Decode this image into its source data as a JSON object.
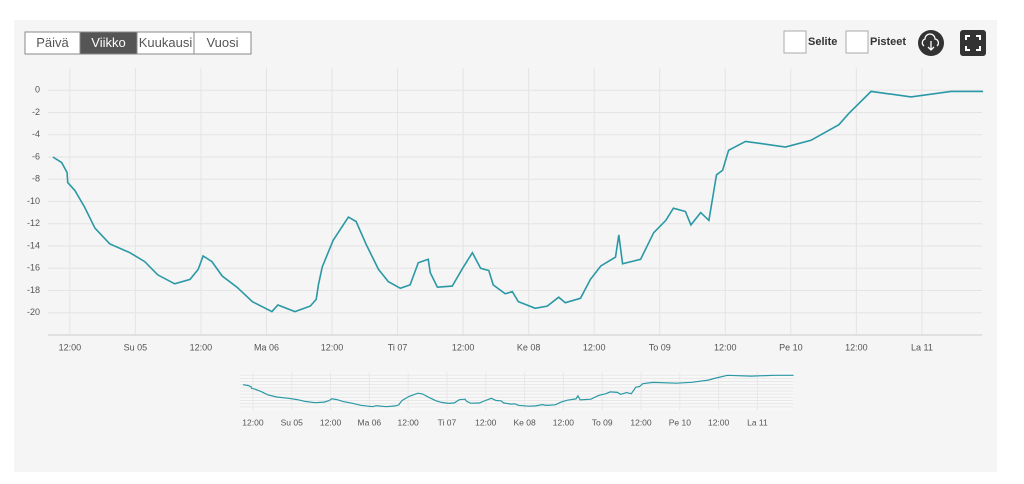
{
  "controls": {
    "ranges": [
      "Päivä",
      "Viikko",
      "Kuukausi",
      "Vuosi"
    ],
    "selected": 1,
    "checkboxes": [
      "Selite",
      "Pisteet"
    ]
  },
  "chart_data": {
    "type": "line",
    "color": "#2a98a5",
    "x": [
      -3.1,
      -1.5,
      -0.5,
      -0.4,
      0.9,
      2.7,
      4.6,
      7.3,
      11,
      13.7,
      16.1,
      19.2,
      22,
      23.5,
      24.4,
      26,
      27.9,
      30.6,
      33.4,
      37,
      38.1,
      41.2,
      44,
      45.1,
      45.5,
      46.2,
      48.2,
      51,
      52.4,
      54.3,
      56.5,
      58.3,
      60.5,
      62.3,
      63.8,
      65.6,
      66,
      67.3,
      70,
      71.9,
      73.7,
      75.2,
      76.7,
      77.5,
      79.7,
      81,
      82.1,
      85.2,
      87.4,
      89.5,
      90.7,
      93.5,
      95.3,
      97.2,
      99.9,
      100.5,
      101.2,
      104.5,
      106.9,
      109.1,
      110.5,
      112.7,
      113.7,
      115.5,
      117,
      118.4,
      119.5,
      120.6,
      123.7,
      131,
      135.7,
      140.8,
      142.6,
      146.7,
      154,
      161.3,
      167.2
    ],
    "values": [
      -6.0,
      -6.5,
      -7.4,
      -8.3,
      -9.0,
      -10.5,
      -12.4,
      -13.8,
      -14.6,
      -15.4,
      -16.6,
      -17.4,
      -17.0,
      -16.1,
      -14.9,
      -15.4,
      -16.7,
      -17.7,
      -19.0,
      -19.9,
      -19.3,
      -19.9,
      -19.4,
      -18.8,
      -17.5,
      -15.9,
      -13.5,
      -11.4,
      -11.8,
      -13.9,
      -16.1,
      -17.2,
      -17.8,
      -17.5,
      -15.5,
      -15.2,
      -16.4,
      -17.7,
      -17.6,
      -16.0,
      -14.6,
      -16.0,
      -16.2,
      -17.5,
      -18.3,
      -18.1,
      -19.0,
      -19.6,
      -19.4,
      -18.6,
      -19.1,
      -18.7,
      -17.0,
      -15.8,
      -15.0,
      -13.0,
      -15.6,
      -15.2,
      -12.8,
      -11.7,
      -10.6,
      -10.9,
      -12.1,
      -11.0,
      -11.7,
      -7.6,
      -7.2,
      -5.4,
      -4.6,
      -5.1,
      -4.5,
      -3.1,
      -2.1,
      -0.1,
      -0.6,
      -0.1,
      -0.1
    ],
    "xlim": [
      -4,
      167
    ],
    "xticks": [
      {
        "value": 0,
        "label": "12:00"
      },
      {
        "value": 12,
        "label": "Su 05"
      },
      {
        "value": 24,
        "label": "12:00"
      },
      {
        "value": 36,
        "label": "Ma 06"
      },
      {
        "value": 48,
        "label": "12:00"
      },
      {
        "value": 60,
        "label": "Ti 07"
      },
      {
        "value": 72,
        "label": "12:00"
      },
      {
        "value": 84,
        "label": "Ke 08"
      },
      {
        "value": 96,
        "label": "12:00"
      },
      {
        "value": 108,
        "label": "To 09"
      },
      {
        "value": 120,
        "label": "12:00"
      },
      {
        "value": 132,
        "label": "Pe 10"
      },
      {
        "value": 144,
        "label": "12:00"
      },
      {
        "value": 156,
        "label": "La 11"
      }
    ],
    "ylim": [
      -22,
      2
    ],
    "yticks": [
      0,
      -2,
      -4,
      -6,
      -8,
      -10,
      -12,
      -14,
      -16,
      -18,
      -20
    ],
    "grid": true
  }
}
